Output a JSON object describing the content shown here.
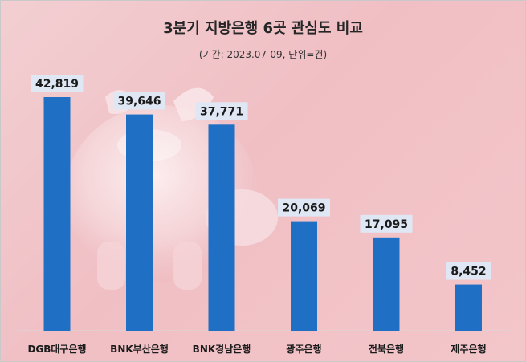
{
  "title": "3분기 지방은행 6곳 관심도 비교",
  "subtitle": "(기간: 2023.07-09, 단위=건)",
  "colors": {
    "bar": "#1f6fc5",
    "label_bg": "#dfe7f4",
    "text": "#1a1a1a"
  },
  "chart_data": {
    "type": "bar",
    "title": "3분기 지방은행 6곳 관심도 비교",
    "subtitle": "(기간: 2023.07-09, 단위=건)",
    "categories": [
      "DGB대구은행",
      "BNK부산은행",
      "BNK경남은행",
      "광주은행",
      "전북은행",
      "제주은행"
    ],
    "values": [
      42819,
      39646,
      37771,
      20069,
      17095,
      8452
    ],
    "value_labels": [
      "42,819",
      "39,646",
      "37,771",
      "20,069",
      "17,095",
      "8,452"
    ],
    "ylim": [
      0,
      45000
    ],
    "grid": false,
    "legend": "none"
  }
}
